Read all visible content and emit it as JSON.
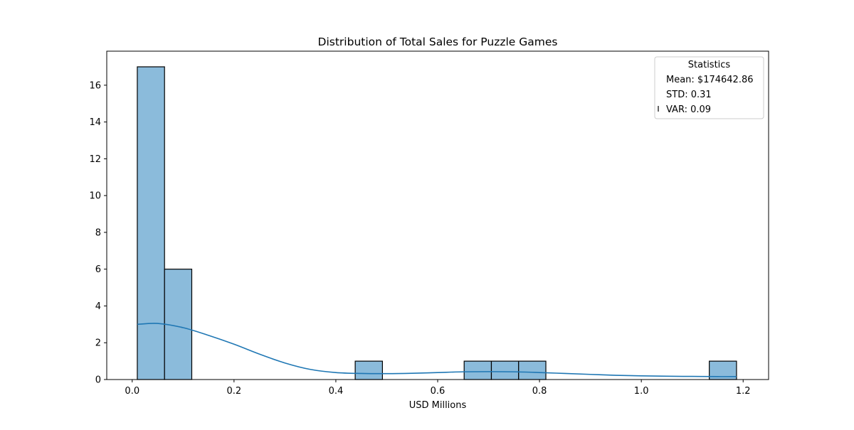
{
  "chart_data": {
    "type": "histogram",
    "title": "Distribution of Total Sales for Puzzle Games",
    "xlabel": "USD Millions",
    "ylabel": "",
    "xlim": [
      -0.05,
      1.25
    ],
    "ylim": [
      0,
      17.85
    ],
    "xticks": [
      0.0,
      0.2,
      0.4,
      0.6,
      0.8,
      1.0,
      1.2
    ],
    "xtick_labels": [
      "0.0",
      "0.2",
      "0.4",
      "0.6",
      "0.8",
      "1.0",
      "1.2"
    ],
    "yticks": [
      0,
      2,
      4,
      6,
      8,
      10,
      12,
      14,
      16
    ],
    "ytick_labels": [
      "0",
      "2",
      "4",
      "6",
      "8",
      "10",
      "12",
      "14",
      "16"
    ],
    "bin_edges": [
      0.01,
      0.0635,
      0.117,
      0.1705,
      0.224,
      0.2775,
      0.331,
      0.3845,
      0.438,
      0.4915,
      0.545,
      0.5985,
      0.652,
      0.7055,
      0.759,
      0.8125,
      0.866,
      0.9195,
      0.973,
      1.0265,
      1.08,
      1.1335,
      1.187
    ],
    "counts": [
      17,
      6,
      0,
      0,
      0,
      0,
      0,
      0,
      1,
      0,
      0,
      0,
      1,
      1,
      1,
      0,
      0,
      0,
      0,
      0,
      0,
      1
    ],
    "bar_color": "#8bbbdb",
    "bar_edge_color": "#000000",
    "kde_color": "#1f77b4",
    "kde": {
      "x": [
        0.01,
        0.05,
        0.1,
        0.15,
        0.2,
        0.25,
        0.3,
        0.35,
        0.4,
        0.45,
        0.5,
        0.55,
        0.6,
        0.65,
        0.7,
        0.75,
        0.8,
        0.85,
        0.9,
        0.95,
        1.0,
        1.05,
        1.1,
        1.15,
        1.187
      ],
      "y": [
        3.0,
        3.05,
        2.82,
        2.4,
        1.92,
        1.38,
        0.9,
        0.55,
        0.38,
        0.33,
        0.32,
        0.34,
        0.38,
        0.42,
        0.43,
        0.42,
        0.38,
        0.33,
        0.28,
        0.23,
        0.2,
        0.18,
        0.17,
        0.16,
        0.16
      ]
    },
    "grid": false,
    "legend": {
      "placement": "top-right",
      "title": "Statistics",
      "entries": [
        "Mean: $174642.86",
        "STD: 0.31",
        "VAR: 0.09"
      ]
    }
  }
}
